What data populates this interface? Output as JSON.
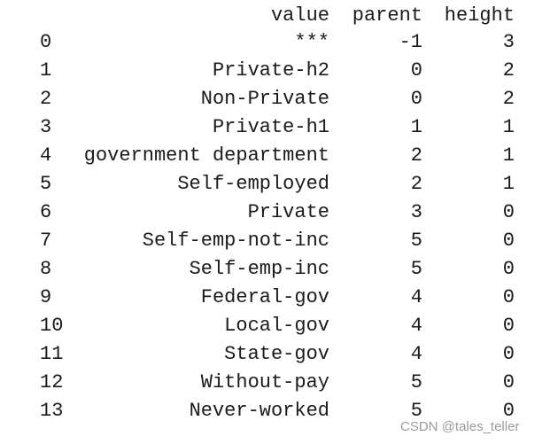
{
  "table": {
    "columns": [
      "value",
      "parent",
      "height"
    ],
    "rows": [
      [
        0,
        "***",
        -1,
        3
      ],
      [
        1,
        "Private-h2",
        0,
        2
      ],
      [
        2,
        "Non-Private",
        0,
        2
      ],
      [
        3,
        "Private-h1",
        1,
        1
      ],
      [
        4,
        "government department",
        2,
        1
      ],
      [
        5,
        "Self-employed",
        2,
        1
      ],
      [
        6,
        "Private",
        3,
        0
      ],
      [
        7,
        "Self-emp-not-inc",
        5,
        0
      ],
      [
        8,
        "Self-emp-inc",
        5,
        0
      ],
      [
        9,
        "Federal-gov",
        4,
        0
      ],
      [
        10,
        "Local-gov",
        4,
        0
      ],
      [
        11,
        "State-gov",
        4,
        0
      ],
      [
        12,
        "Without-pay",
        5,
        0
      ],
      [
        13,
        "Never-worked",
        5,
        0
      ]
    ]
  },
  "watermark": "CSDN @tales_teller"
}
